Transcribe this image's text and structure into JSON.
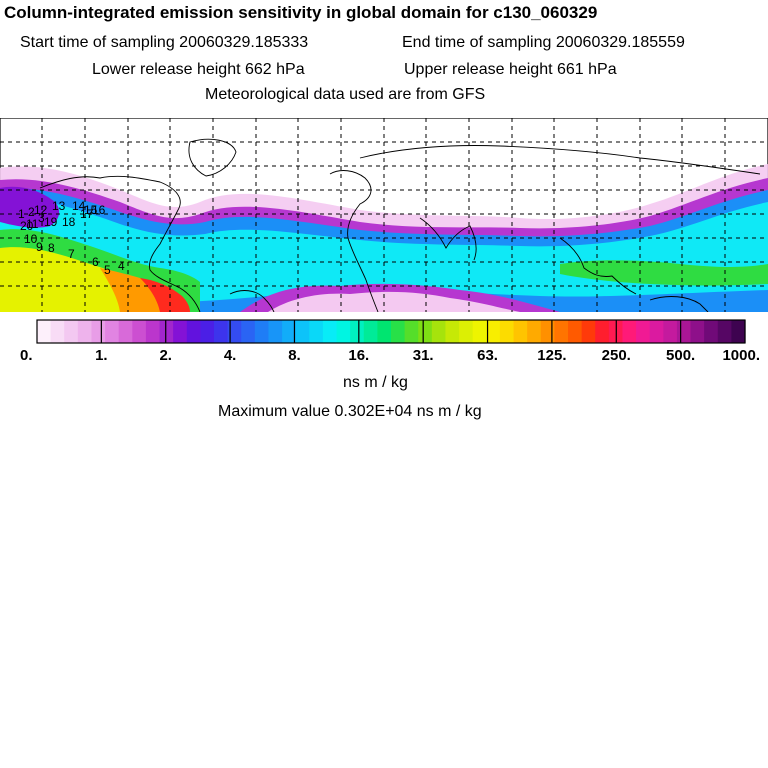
{
  "header": {
    "title": "Column-integrated emission sensitivity in global domain for c130_060329",
    "start": "Start time of sampling 20060329.185333",
    "end": "End time of sampling 20060329.185559",
    "lower": "Lower release height  662 hPa",
    "upper": "Upper release height  661 hPa",
    "met": "Meteorological data used are from GFS"
  },
  "colorbar": {
    "tick_labels": [
      "0.",
      "1.",
      "2.",
      "4.",
      "8.",
      "16.",
      "31.",
      "63.",
      "125.",
      "250.",
      "500.",
      "1000."
    ],
    "colors": [
      "#fdf0fb",
      "#f8dcf6",
      "#f3c8f1",
      "#eeb3ec",
      "#e89de7",
      "#e184e2",
      "#d86ad9",
      "#cc4fd1",
      "#bb36cc",
      "#a226cd",
      "#8412d6",
      "#6212de",
      "#4b1fe6",
      "#3d34ec",
      "#344cf1",
      "#2a64f4",
      "#1f7df6",
      "#1895f8",
      "#12adf9",
      "#0dc3f9",
      "#0ad8f8",
      "#08ecf7",
      "#00f5e2",
      "#00f0c0",
      "#00eb98",
      "#00e570",
      "#28e048",
      "#55de2a",
      "#7edf14",
      "#a6e30c",
      "#c6e906",
      "#dcef04",
      "#eef400",
      "#f8ee00",
      "#fcdc00",
      "#ffc400",
      "#ffaa00",
      "#ff9000",
      "#ff7400",
      "#ff5a00",
      "#ff3a0a",
      "#ff1e2e",
      "#ff1a52",
      "#ff1a78",
      "#f01a94",
      "#db1aa0",
      "#c41a9e",
      "#aa1696",
      "#8e108a",
      "#700a78",
      "#560664",
      "#3e0350"
    ],
    "units": "ns m / kg",
    "max_value": "Maximum value  0.302E+04 ns m / kg"
  },
  "map": {
    "point_labels": [
      "1",
      "2",
      "3",
      "4",
      "5",
      "6",
      "7",
      "8",
      "9",
      "10",
      "11",
      "12",
      "13",
      "14",
      "15",
      "16",
      "17",
      "18",
      "19",
      "20"
    ],
    "colors": {
      "low": "#f4c9f1",
      "mid_low": "#b637d0",
      "blue": "#1b8ff7",
      "cyan": "#0fe9f6",
      "green": "#2fdc42",
      "yellow": "#e5f200",
      "orange": "#ff9a00",
      "red": "#ff2a1e",
      "coast": "#000000",
      "grid": "#000000"
    }
  }
}
